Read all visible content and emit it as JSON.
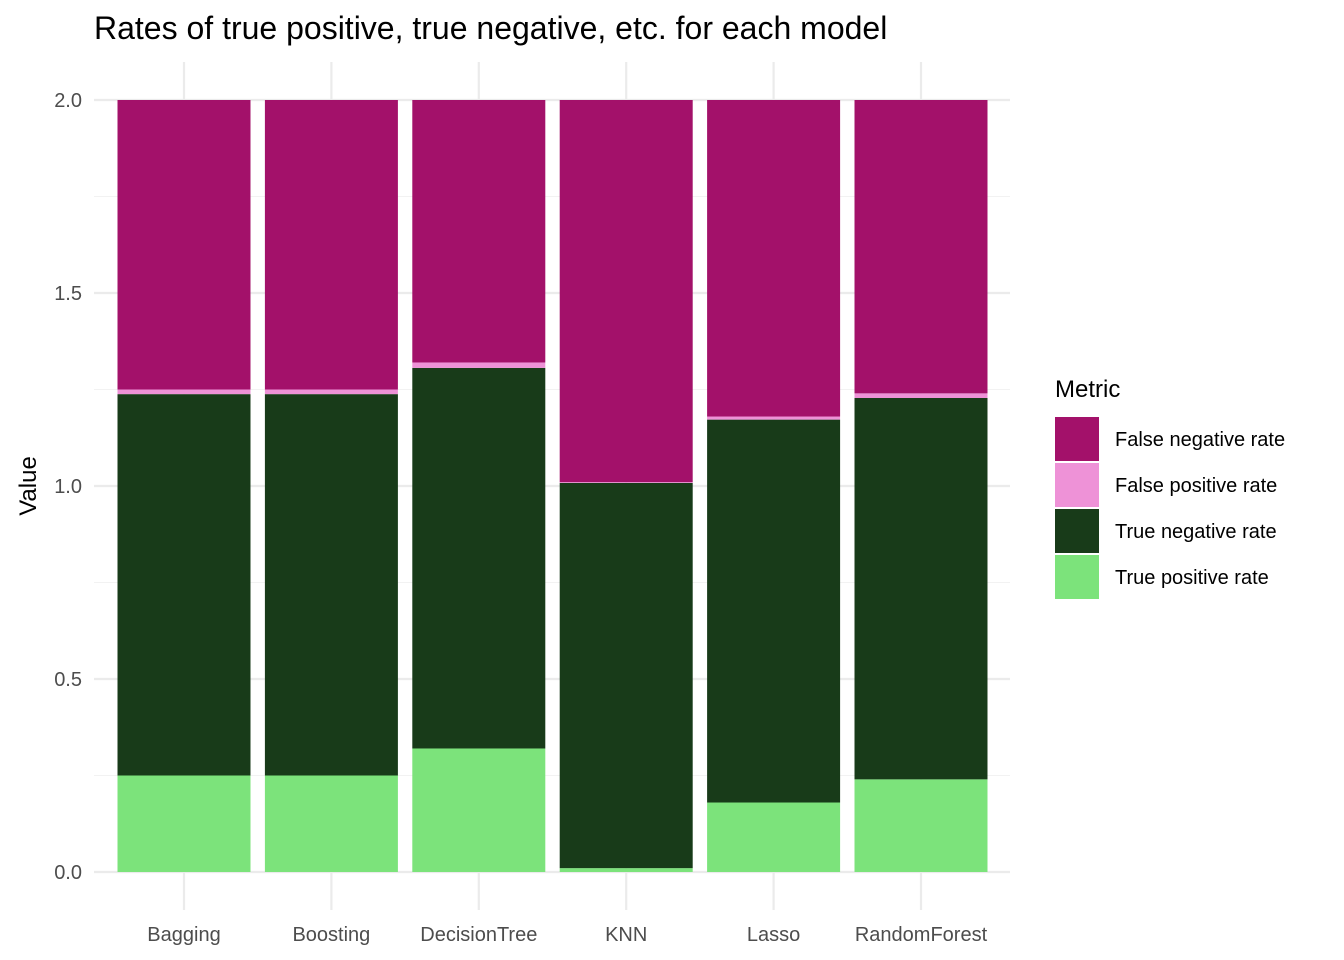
{
  "chart_data": {
    "type": "bar",
    "stacked": true,
    "title": "Rates of true positive, true negative, etc. for each model",
    "xlabel": "",
    "ylabel": "Value",
    "ylim": [
      0,
      2
    ],
    "yticks": [
      "0.0",
      "0.5",
      "1.0",
      "1.5",
      "2.0"
    ],
    "ytick_values": [
      0,
      0.5,
      1,
      1.5,
      2
    ],
    "categories": [
      "Bagging",
      "Boosting",
      "DecisionTree",
      "KNN",
      "Lasso",
      "RandomForest"
    ],
    "legend_title": "Metric",
    "legend_position": "right",
    "grid": true,
    "series": [
      {
        "name": "False negative rate",
        "color": "#a3116a",
        "values": [
          0.75,
          0.75,
          0.68,
          0.99,
          0.82,
          0.76
        ]
      },
      {
        "name": "False positive rate",
        "color": "#ee92d7",
        "values": [
          0.012,
          0.012,
          0.014,
          0.002,
          0.008,
          0.012
        ]
      },
      {
        "name": "True negative rate",
        "color": "#183b19",
        "values": [
          0.988,
          0.988,
          0.986,
          0.998,
          0.992,
          0.988
        ]
      },
      {
        "name": "True positive rate",
        "color": "#7ce37b",
        "values": [
          0.25,
          0.25,
          0.32,
          0.01,
          0.18,
          0.24
        ]
      }
    ]
  }
}
